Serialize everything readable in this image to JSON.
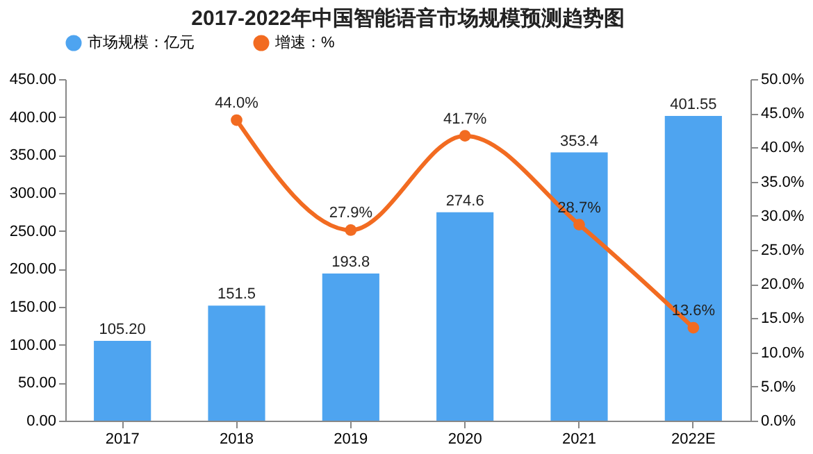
{
  "chart_data": {
    "type": "bar",
    "title": "2017-2022年中国智能语音市场规模预测趋势图",
    "categories": [
      "2017",
      "2018",
      "2019",
      "2020",
      "2021",
      "2022E"
    ],
    "series": [
      {
        "name": "市场规模：亿元",
        "color": "#4ea4f0",
        "values": [
          105.2,
          151.5,
          193.8,
          274.6,
          353.4,
          401.55
        ],
        "value_labels": [
          "105.20",
          "151.5",
          "193.8",
          "274.6",
          "353.4",
          "401.55"
        ]
      },
      {
        "name": "增速：%",
        "type": "line",
        "axis": "y2",
        "color": "#f26b21",
        "values": [
          null,
          44.0,
          27.9,
          41.7,
          28.7,
          13.6
        ],
        "value_labels": [
          null,
          "44.0%",
          "27.9%",
          "41.7%",
          "28.7%",
          "13.6%"
        ]
      }
    ],
    "ylim": [
      0,
      450
    ],
    "yticks": [
      {
        "value": 0,
        "label": "0.00"
      },
      {
        "value": 50,
        "label": "50.00"
      },
      {
        "value": 100,
        "label": "100.00"
      },
      {
        "value": 150,
        "label": "150.00"
      },
      {
        "value": 200,
        "label": "200.00"
      },
      {
        "value": 250,
        "label": "250.00"
      },
      {
        "value": 300,
        "label": "300.00"
      },
      {
        "value": 350,
        "label": "350.00"
      },
      {
        "value": 400,
        "label": "400.00"
      },
      {
        "value": 450,
        "label": "450.00"
      }
    ],
    "y2lim": [
      0,
      50
    ],
    "y2ticks": [
      {
        "value": 0,
        "label": "0.0%"
      },
      {
        "value": 5,
        "label": "5.0%"
      },
      {
        "value": 10,
        "label": "10.0%"
      },
      {
        "value": 15,
        "label": "15.0%"
      },
      {
        "value": 20,
        "label": "20.0%"
      },
      {
        "value": 25,
        "label": "25.0%"
      },
      {
        "value": 30,
        "label": "30.0%"
      },
      {
        "value": 35,
        "label": "35.0%"
      },
      {
        "value": 40,
        "label": "40.0%"
      },
      {
        "value": 45,
        "label": "45.0%"
      },
      {
        "value": 50,
        "label": "50.0%"
      }
    ],
    "legend": "top",
    "marker": "circle",
    "line_style": "solid",
    "grid": false
  }
}
